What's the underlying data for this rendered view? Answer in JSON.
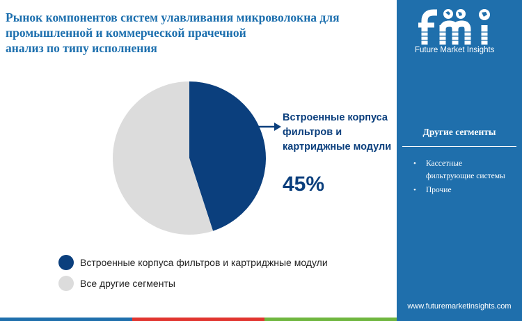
{
  "header": {
    "title_lines": [
      "Рынок компонентов систем улавливания микроволокна для",
      "промышленной и коммерческой прачечной",
      "анализ по типу исполнения"
    ]
  },
  "brand": {
    "logo_letters": "fmi",
    "name": "Future Market Insights",
    "website": "www.futuremarketinsights.com"
  },
  "side_panel": {
    "title": "Другие сегменты",
    "items": [
      {
        "label": "Кассетные фильтрующие системы"
      },
      {
        "label": "Прочие"
      }
    ]
  },
  "callout": {
    "label": "Встроенные корпуса фильтров и картриджные модули",
    "value": "45%"
  },
  "chart_data": {
    "type": "pie",
    "slices": [
      {
        "label": "Встроенные корпуса фильтров и картриджные модули",
        "value": 45,
        "color": "#0b3f7d"
      },
      {
        "label": "Все другие сегменты",
        "value": 55,
        "color": "#dcdcdc"
      }
    ],
    "legend": {
      "placement": "bottom-left"
    }
  },
  "colors": {
    "title": "#1c6fae",
    "panel_bg": "#1f6fac",
    "primary": "#0b3f7d",
    "secondary": "#dcdcdc"
  },
  "icons": [
    "fmi-logo",
    "arrow-right-icon"
  ]
}
